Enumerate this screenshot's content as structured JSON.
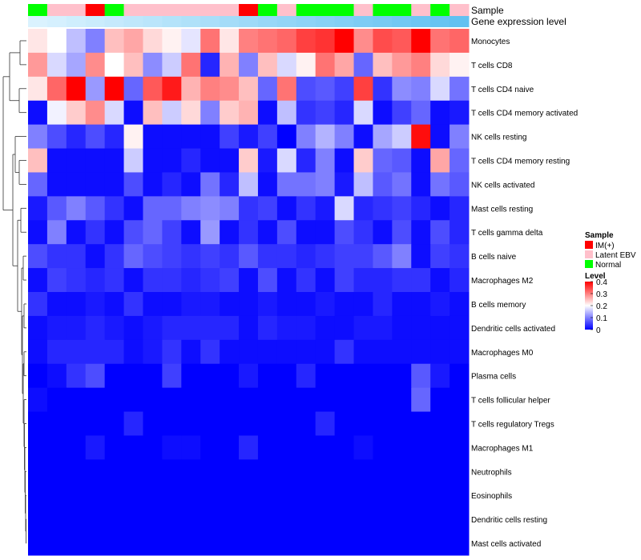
{
  "chart_data": {
    "type": "heatmap",
    "row_labels": [
      "Monocytes",
      "T cells CD8",
      "T cells CD4 naive",
      "T cells CD4 memory activated",
      "NK cells resting",
      "T cells CD4 memory resting",
      "NK cells activated",
      "Mast cells resting",
      "T cells gamma delta",
      "B cells naive",
      "Macrophages M2",
      "B cells memory",
      "Dendritic cells activated",
      "Macrophages M0",
      "Plasma cells",
      "T cells follicular helper",
      "T cells regulatory  Tregs",
      "Macrophages M1",
      "Neutrophils",
      "Eosinophils",
      "Dendritic cells resting",
      "Mast cells activated"
    ],
    "annotation_rows": [
      {
        "name": "Sample",
        "values": [
          "Normal",
          "Latent EBV",
          "Latent EBV",
          "IM(+)",
          "Normal",
          "Latent EBV",
          "Latent EBV",
          "Latent EBV",
          "Latent EBV",
          "Latent EBV",
          "Latent EBV",
          "IM(+)",
          "Normal",
          "Latent EBV",
          "Normal",
          "Normal",
          "Normal",
          "Latent EBV",
          "Normal",
          "Normal",
          "Latent EBV",
          "Normal",
          "Latent EBV"
        ]
      },
      {
        "name": "Gene expression level",
        "values": [
          0.05,
          0.09,
          0.13,
          0.17,
          0.21,
          0.25,
          0.29,
          0.33,
          0.37,
          0.41,
          0.45,
          0.5,
          0.54,
          0.58,
          0.62,
          0.66,
          0.7,
          0.74,
          0.78,
          0.82,
          0.86,
          0.9,
          0.94
        ]
      }
    ],
    "values": [
      [
        0.22,
        0.2,
        0.15,
        0.1,
        0.25,
        0.27,
        0.23,
        0.21,
        0.18,
        0.31,
        0.22,
        0.3,
        0.31,
        0.32,
        0.35,
        0.36,
        0.4,
        0.29,
        0.34,
        0.33,
        0.4,
        0.31,
        0.32
      ],
      [
        0.28,
        0.17,
        0.13,
        0.29,
        0.2,
        0.25,
        0.11,
        0.16,
        0.31,
        0.03,
        0.26,
        0.1,
        0.25,
        0.17,
        0.21,
        0.31,
        0.27,
        0.08,
        0.25,
        0.28,
        0.3,
        0.23,
        0.21
      ],
      [
        0.22,
        0.32,
        0.4,
        0.12,
        0.4,
        0.08,
        0.33,
        0.38,
        0.26,
        0.3,
        0.29,
        0.25,
        0.08,
        0.31,
        0.06,
        0.07,
        0.05,
        0.35,
        0.04,
        0.11,
        0.1,
        0.17,
        0.09
      ],
      [
        0.01,
        0.19,
        0.24,
        0.29,
        0.17,
        0.01,
        0.25,
        0.16,
        0.23,
        0.1,
        0.24,
        0.26,
        0.01,
        0.15,
        0.04,
        0.05,
        0.03,
        0.17,
        0.01,
        0.05,
        0.08,
        0.01,
        0.02
      ],
      [
        0.1,
        0.06,
        0.03,
        0.06,
        0.03,
        0.21,
        0.01,
        0.01,
        0.01,
        0.01,
        0.05,
        0.02,
        0.05,
        0.0,
        0.1,
        0.14,
        0.1,
        0.01,
        0.13,
        0.16,
        0.39,
        0.01,
        0.1
      ],
      [
        0.25,
        0.01,
        0.01,
        0.01,
        0.01,
        0.16,
        0.01,
        0.01,
        0.03,
        0.01,
        0.01,
        0.24,
        0.02,
        0.17,
        0.03,
        0.1,
        0.01,
        0.24,
        0.08,
        0.07,
        0.01,
        0.27,
        0.08
      ],
      [
        0.08,
        0.01,
        0.01,
        0.01,
        0.01,
        0.06,
        0.01,
        0.03,
        0.01,
        0.09,
        0.03,
        0.15,
        0.01,
        0.09,
        0.09,
        0.1,
        0.02,
        0.15,
        0.07,
        0.09,
        0.01,
        0.09,
        0.07
      ],
      [
        0.02,
        0.07,
        0.1,
        0.07,
        0.04,
        0.01,
        0.08,
        0.08,
        0.1,
        0.11,
        0.1,
        0.04,
        0.05,
        0.01,
        0.04,
        0.02,
        0.17,
        0.03,
        0.04,
        0.05,
        0.03,
        0.01,
        0.03
      ],
      [
        0.01,
        0.1,
        0.01,
        0.04,
        0.01,
        0.06,
        0.08,
        0.05,
        0.01,
        0.12,
        0.01,
        0.04,
        0.01,
        0.06,
        0.01,
        0.01,
        0.06,
        0.04,
        0.01,
        0.06,
        0.01,
        0.06,
        0.03
      ],
      [
        0.06,
        0.04,
        0.04,
        0.01,
        0.04,
        0.08,
        0.06,
        0.05,
        0.04,
        0.05,
        0.04,
        0.07,
        0.04,
        0.04,
        0.03,
        0.04,
        0.05,
        0.05,
        0.07,
        0.1,
        0.01,
        0.05,
        0.04
      ],
      [
        0.01,
        0.05,
        0.04,
        0.03,
        0.04,
        0.01,
        0.04,
        0.04,
        0.03,
        0.04,
        0.05,
        0.01,
        0.06,
        0.01,
        0.04,
        0.01,
        0.05,
        0.03,
        0.03,
        0.04,
        0.04,
        0.01,
        0.03
      ],
      [
        0.04,
        0.01,
        0.01,
        0.02,
        0.01,
        0.04,
        0.01,
        0.01,
        0.02,
        0.02,
        0.01,
        0.01,
        0.02,
        0.01,
        0.01,
        0.02,
        0.01,
        0.01,
        0.03,
        0.01,
        0.01,
        0.02,
        0.01
      ],
      [
        0.01,
        0.02,
        0.02,
        0.03,
        0.02,
        0.01,
        0.02,
        0.03,
        0.03,
        0.03,
        0.03,
        0.01,
        0.03,
        0.02,
        0.02,
        0.01,
        0.01,
        0.02,
        0.02,
        0.01,
        0.01,
        0.01,
        0.01
      ],
      [
        0.01,
        0.03,
        0.03,
        0.03,
        0.03,
        0.01,
        0.02,
        0.04,
        0.01,
        0.04,
        0.01,
        0.01,
        0.01,
        0.01,
        0.01,
        0.01,
        0.04,
        0.01,
        0.01,
        0.01,
        0.01,
        0.01,
        0.01
      ],
      [
        0.0,
        0.01,
        0.04,
        0.06,
        0.0,
        0.0,
        0.0,
        0.05,
        0.0,
        0.0,
        0.0,
        0.02,
        0.0,
        0.0,
        0.03,
        0.0,
        0.0,
        0.0,
        0.0,
        0.0,
        0.07,
        0.02,
        0.0
      ],
      [
        0.01,
        0.0,
        0.0,
        0.0,
        0.0,
        0.0,
        0.0,
        0.0,
        0.0,
        0.0,
        0.0,
        0.0,
        0.0,
        0.0,
        0.0,
        0.0,
        0.0,
        0.0,
        0.0,
        0.0,
        0.08,
        0.0,
        0.0
      ],
      [
        0.0,
        0.0,
        0.0,
        0.0,
        0.0,
        0.03,
        0.0,
        0.0,
        0.0,
        0.0,
        0.0,
        0.0,
        0.0,
        0.0,
        0.0,
        0.03,
        0.0,
        0.0,
        0.0,
        0.0,
        0.0,
        0.0,
        0.0
      ],
      [
        0.0,
        0.0,
        0.0,
        0.02,
        0.0,
        0.0,
        0.0,
        0.01,
        0.01,
        0.0,
        0.0,
        0.03,
        0.0,
        0.0,
        0.0,
        0.0,
        0.0,
        0.01,
        0.0,
        0.0,
        0.0,
        0.0,
        0.0
      ],
      [
        0.0,
        0.0,
        0.0,
        0.0,
        0.0,
        0.0,
        0.0,
        0.0,
        0.0,
        0.0,
        0.0,
        0.0,
        0.0,
        0.0,
        0.0,
        0.0,
        0.0,
        0.0,
        0.0,
        0.0,
        0.0,
        0.0,
        0.0
      ],
      [
        0.0,
        0.0,
        0.0,
        0.0,
        0.0,
        0.0,
        0.0,
        0.0,
        0.0,
        0.0,
        0.0,
        0.0,
        0.0,
        0.0,
        0.0,
        0.0,
        0.0,
        0.0,
        0.0,
        0.0,
        0.0,
        0.0,
        0.0
      ],
      [
        0.0,
        0.0,
        0.0,
        0.0,
        0.0,
        0.0,
        0.0,
        0.0,
        0.0,
        0.0,
        0.0,
        0.0,
        0.0,
        0.0,
        0.0,
        0.0,
        0.0,
        0.0,
        0.0,
        0.0,
        0.0,
        0.0,
        0.0
      ],
      [
        0.0,
        0.0,
        0.0,
        0.0,
        0.0,
        0.0,
        0.0,
        0.0,
        0.0,
        0.0,
        0.0,
        0.0,
        0.0,
        0.0,
        0.0,
        0.0,
        0.0,
        0.0,
        0.0,
        0.0,
        0.0,
        0.0,
        0.0
      ]
    ],
    "color_scale": {
      "min": 0,
      "mid": 0.2,
      "max": 0.4,
      "low_color": "#0000ff",
      "mid_color": "#ffffff",
      "high_color": "#ff0000"
    },
    "legend": {
      "sample": {
        "title": "Sample",
        "items": [
          {
            "label": "IM(+)",
            "color": "#ff0000"
          },
          {
            "label": "Latent EBV",
            "color": "#ffc0cb"
          },
          {
            "label": "Normal",
            "color": "#00ff00"
          }
        ]
      },
      "level": {
        "title": "Level",
        "ticks": [
          "0.4",
          "0.3",
          "0.2",
          "0.1",
          "0"
        ]
      }
    },
    "dendrogram": "row clustering tree on left side",
    "placement": "legend right of heatmap"
  }
}
